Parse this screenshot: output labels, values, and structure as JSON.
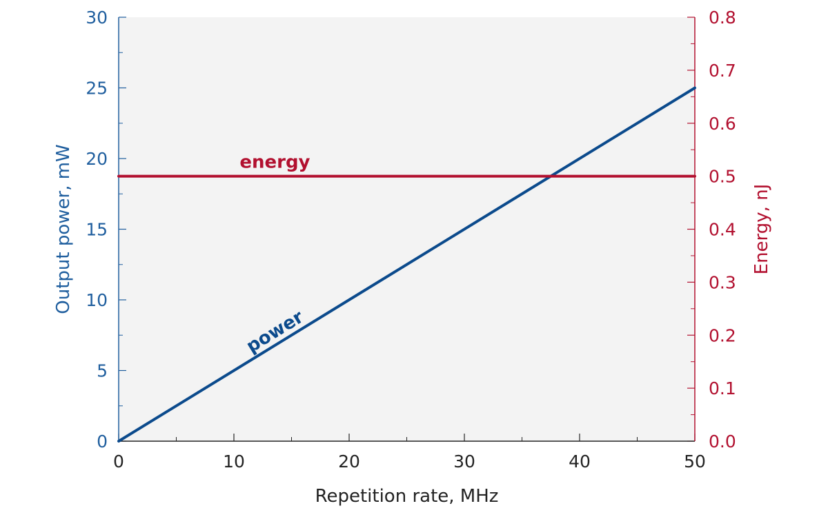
{
  "chart_data": {
    "type": "line",
    "xlabel": "Repetition rate, MHz",
    "ylabel_left": "Output power, mW",
    "ylabel_right": "Energy, nJ",
    "xlim": [
      0,
      50
    ],
    "ylim_left": [
      0,
      30
    ],
    "ylim_right": [
      0,
      0.8
    ],
    "x_ticks": [
      0,
      10,
      20,
      30,
      40,
      50
    ],
    "y_left_ticks": [
      0,
      5,
      10,
      15,
      20,
      25,
      30
    ],
    "y_right_ticks": [
      "0.0",
      "0.1",
      "0.2",
      "0.3",
      "0.4",
      "0.5",
      "0.6",
      "0.7",
      "0.8"
    ],
    "grid": false,
    "series": [
      {
        "name": "power",
        "axis": "left",
        "color": "#0b4a8c",
        "x": [
          0,
          50
        ],
        "y": [
          0,
          25
        ]
      },
      {
        "name": "energy",
        "axis": "right",
        "color": "#b2102f",
        "x": [
          0,
          50
        ],
        "y": [
          0.5,
          0.5
        ]
      }
    ],
    "colors": {
      "left_axis": "#1f5e9e",
      "right_axis": "#b2102f",
      "plot_bg": "#f3f3f3",
      "x_axis": "#222222"
    }
  }
}
